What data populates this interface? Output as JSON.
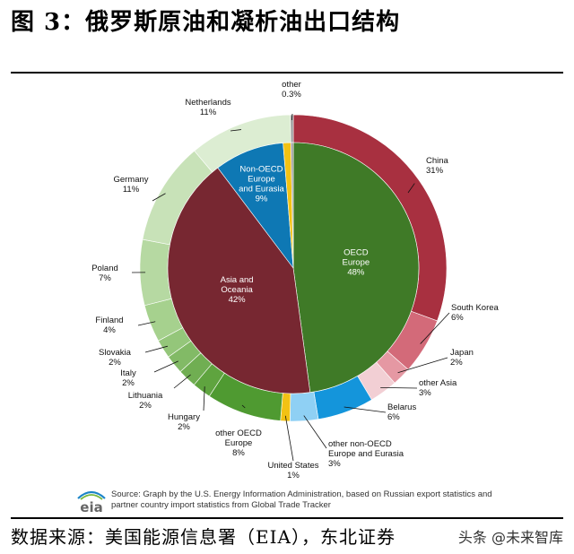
{
  "figure_title": "图 3：俄罗斯原油和凝析油出口结构",
  "footer_source": "数据来源：美国能源信息署（EIA），东北证券",
  "watermark": "头条 @未来智库",
  "source_note": "Source: Graph by the U.S. Energy Information Administration, based on Russian export statistics and partner country import statistics from Global Trade Tracker",
  "logo_text": "eia",
  "chart_data": {
    "type": "pie",
    "subtype": "nested-donut",
    "inner": [
      {
        "label": "OECD\nEurope",
        "value": 48,
        "text": "48%",
        "color": "#3f7a27"
      },
      {
        "label": "Asia and\nOceania",
        "value": 42,
        "text": "42%",
        "color": "#772731"
      },
      {
        "label": "Non-OECD\nEurope\nand Eurasia",
        "value": 9,
        "text": "9%",
        "color": "#0e78b4"
      },
      {
        "label": "United States",
        "value": 1,
        "text": "1%",
        "color": "#f2c214"
      },
      {
        "label": "other",
        "value": 0.3,
        "text": "0.3%",
        "color": "#9a9a9a"
      }
    ],
    "outer": [
      {
        "label": "China",
        "value": 31,
        "text": "31%",
        "color": "#a83040"
      },
      {
        "label": "South Korea",
        "value": 6,
        "text": "6%",
        "color": "#d36a79"
      },
      {
        "label": "Japan",
        "value": 2,
        "text": "2%",
        "color": "#e598a3"
      },
      {
        "label": "other Asia",
        "value": 3,
        "text": "3%",
        "color": "#f2cfd4"
      },
      {
        "label": "Belarus",
        "value": 6,
        "text": "6%",
        "color": "#1495db"
      },
      {
        "label": "other non-OECD\nEurope and Eurasia",
        "value": 3,
        "text": "3%",
        "color": "#8fd0f4"
      },
      {
        "label": "United States",
        "value": 1,
        "text": "1%",
        "color": "#f2c214"
      },
      {
        "label": "other OECD\nEurope",
        "value": 8,
        "text": "8%",
        "color": "#4f9a31"
      },
      {
        "label": "Hungary",
        "value": 2,
        "text": "2%",
        "color": "#5fa43f"
      },
      {
        "label": "Lithuania",
        "value": 2,
        "text": "2%",
        "color": "#70ae52"
      },
      {
        "label": "Italy",
        "value": 2,
        "text": "2%",
        "color": "#82ba66"
      },
      {
        "label": "Slovakia",
        "value": 2,
        "text": "2%",
        "color": "#94c67a"
      },
      {
        "label": "Finland",
        "value": 4,
        "text": "4%",
        "color": "#a6d18e"
      },
      {
        "label": "Poland",
        "value": 7,
        "text": "7%",
        "color": "#b6d9a2"
      },
      {
        "label": "Germany",
        "value": 11,
        "text": "11%",
        "color": "#c8e2b8"
      },
      {
        "label": "Netherlands",
        "value": 11,
        "text": "11%",
        "color": "#dcedd2"
      },
      {
        "label": "other",
        "value": 0.3,
        "text": "0.3%",
        "color": "#9a9a9a"
      }
    ]
  }
}
